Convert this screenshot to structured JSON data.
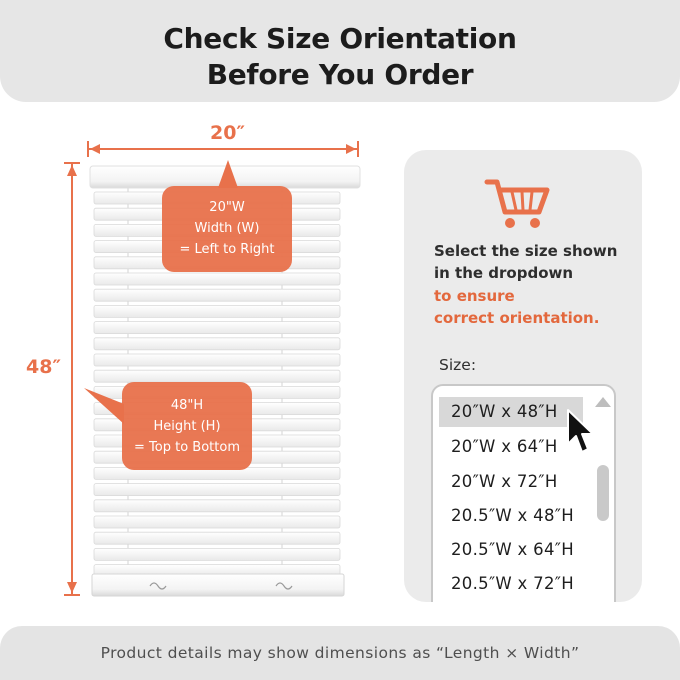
{
  "header": {
    "title_line1": "Check Size Orientation",
    "title_line2": "Before You Order"
  },
  "dimensions": {
    "width_label": "20″",
    "height_label": "48″"
  },
  "callout_width": {
    "line1": "20\"W",
    "line2": "Width (W)",
    "line3": "= Left to Right"
  },
  "callout_height": {
    "line1": "48\"H",
    "line2": "Height (H)",
    "line3": "= Top to Bottom"
  },
  "panel": {
    "text_line1": "Select the size shown",
    "text_line2": "in the dropdown",
    "highlight_line1": "to ensure",
    "highlight_line2": "correct orientation.",
    "size_label": "Size:",
    "options": [
      "20″W x 48″H",
      "20″W x 64″H",
      "20″W x 72″H",
      "20.5″W x 48″H",
      "20.5″W x 64″H",
      "20.5″W x 72″H"
    ],
    "selected_option": "20″W x 48″H"
  },
  "footer": {
    "text": "Product details may show dimensions as “Length × Width”"
  },
  "icons": {
    "cart": "shopping-cart-icon",
    "cursor": "mouse-pointer-icon",
    "scroll_up": "scroll-up-arrow-icon"
  },
  "colors": {
    "accent": "#e8714b",
    "callout": "#e8714b",
    "header_bg": "#e6e6e6",
    "panel_bg": "#ebebeb"
  }
}
